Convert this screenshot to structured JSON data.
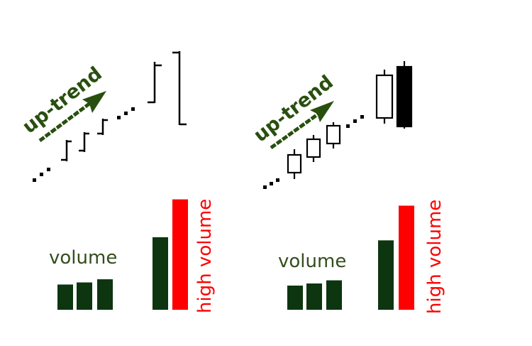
{
  "colors": {
    "trend_green": "#294f0f",
    "volume_bar": "#0c3510",
    "high_volume_bar": "#ff0000",
    "label_green": "#344d1c",
    "label_red": "#ff0000",
    "ink": "#000000"
  },
  "panels": [
    {
      "id": "left",
      "chart_style": "bar chart (OHLC)",
      "trend_label": "up-trend",
      "volume_label": "volume",
      "high_volume_label": "high volume",
      "volume_bars": [
        24,
        26,
        29,
        69,
        105
      ],
      "volume_bar_colors": [
        "volume",
        "volume",
        "volume",
        "volume",
        "high"
      ]
    },
    {
      "id": "right",
      "chart_style": "candlestick",
      "trend_label": "up-trend",
      "volume_label": "volume",
      "high_volume_label": "high volume",
      "volume_bars": [
        23,
        25,
        28,
        66,
        99
      ],
      "volume_bar_colors": [
        "volume",
        "volume",
        "volume",
        "volume",
        "high"
      ]
    }
  ]
}
